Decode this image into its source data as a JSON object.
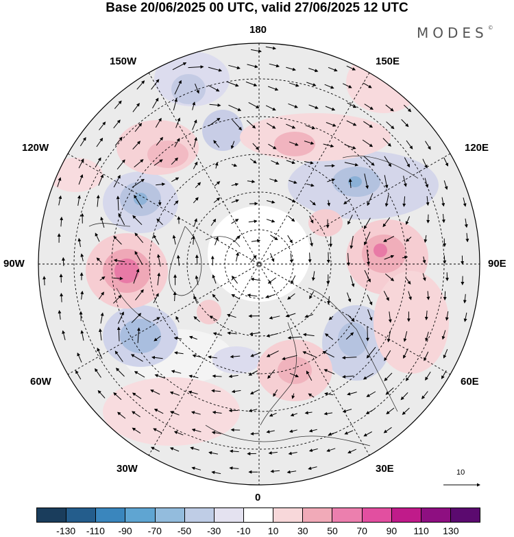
{
  "title": "Base 20/06/2025 00 UTC, valid 27/06/2025 12 UTC",
  "brand": {
    "text": "MODES",
    "mark": "©"
  },
  "longitude_labels": {
    "top": "180",
    "bottom": "0",
    "left": "90W",
    "right": "90E",
    "upper_left": "150W",
    "upper_right": "150E",
    "upper_left2": "120W",
    "upper_right2": "120E",
    "lower_left": "60W",
    "lower_right": "60E",
    "lower_left2": "30W",
    "lower_right2": "30E"
  },
  "vector_scale_label": "10",
  "colorbar": {
    "colors": [
      "#1a3d5c",
      "#245d8c",
      "#3a86bd",
      "#5fa5d2",
      "#93bcdd",
      "#bfcde6",
      "#e4e2f0",
      "#ffffff",
      "#f8d8da",
      "#f1aab8",
      "#ec7fae",
      "#e24fa0",
      "#c01b8a",
      "#8e0f81",
      "#5b0a6f"
    ],
    "ticks": [
      "-130",
      "-110",
      "-90",
      "-70",
      "-50",
      "-30",
      "-10",
      "10",
      "30",
      "50",
      "70",
      "90",
      "110",
      "130"
    ]
  },
  "anomaly_blobs": [
    {
      "kind": "negative",
      "color": "#c9cde6"
    },
    {
      "kind": "positive",
      "color": "#f6c9cd"
    }
  ]
}
